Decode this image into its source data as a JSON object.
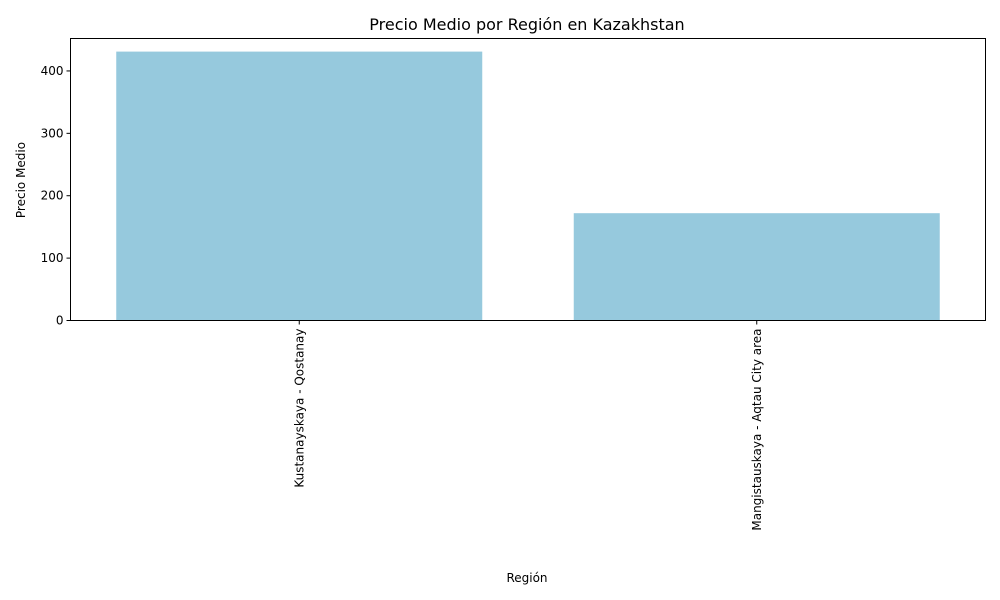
{
  "chart_data": {
    "type": "bar",
    "title": "Precio Medio por Región en Kazakhstan",
    "xlabel": "Región",
    "ylabel": "Precio Medio",
    "categories": [
      "Kustanayskaya - Qostanay",
      "Mangistauskaya - Aqtau City area"
    ],
    "values": [
      431,
      172
    ],
    "ylim": [
      0,
      452
    ],
    "yticks": [
      0,
      100,
      200,
      300,
      400
    ],
    "bar_color": "#96c9dd",
    "grid": false,
    "legend": "none",
    "x_tick_rotation": "vertical"
  }
}
